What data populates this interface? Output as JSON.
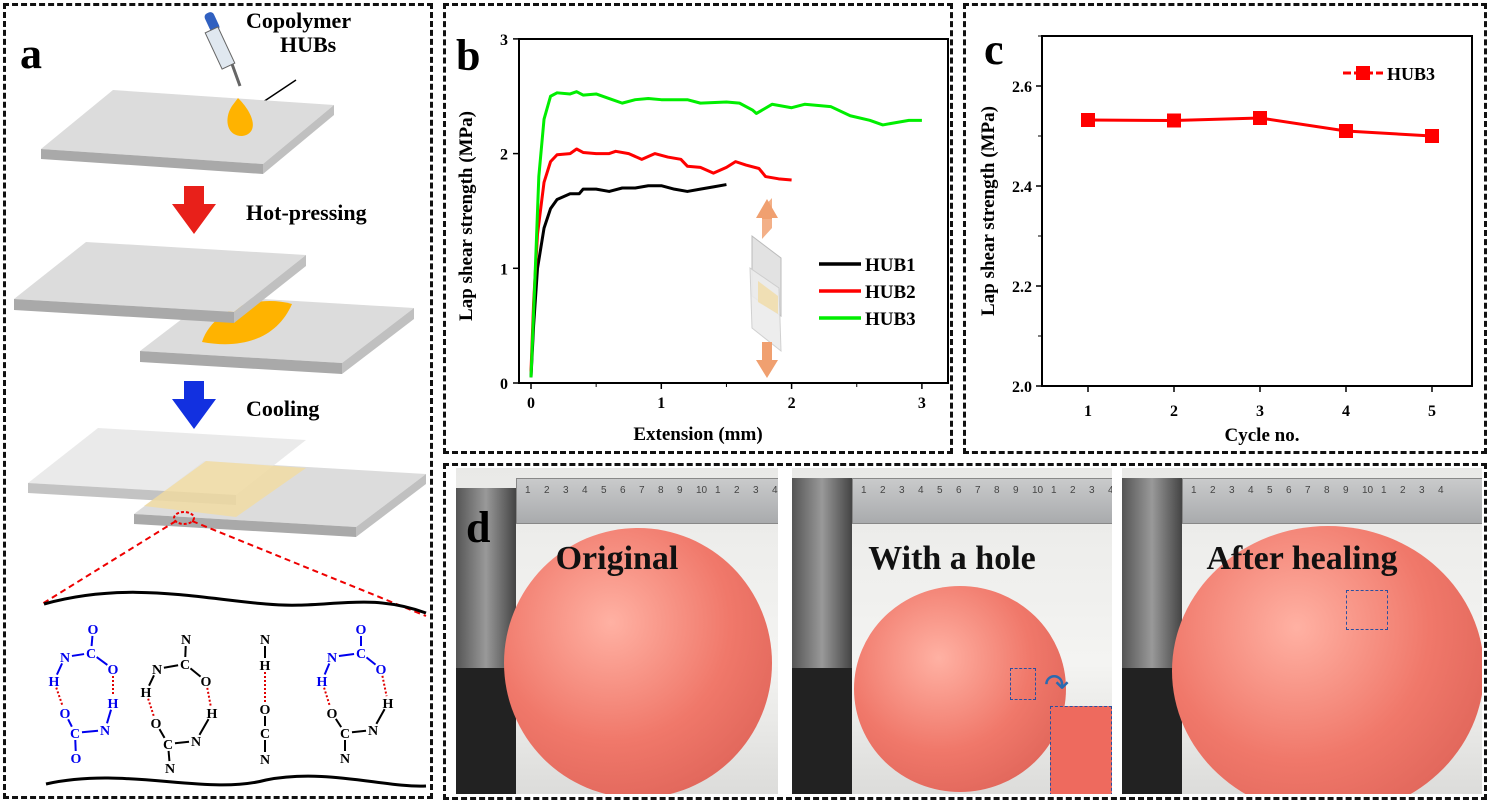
{
  "panel_a": {
    "label": "a",
    "copolymer_label_line1": "Copolymer",
    "copolymer_label_line2": "HUBs",
    "step1": "Hot-pressing",
    "step2": "Cooling",
    "colors": {
      "adhesive": "#ffb300",
      "arrow_hot": "#e8201a",
      "arrow_cool": "#1230e0",
      "hbond": "#e00000",
      "urethane": "#0000ee"
    },
    "motifs": [
      {
        "atoms": [
          "O",
          "C",
          "N",
          "O",
          "H",
          "H",
          "O",
          "N",
          "C",
          "O"
        ],
        "color": "#0000ee"
      },
      {
        "atoms": [
          "N",
          "C",
          "N",
          "O",
          "H",
          "H",
          "O",
          "N",
          "C",
          "N"
        ],
        "color": "#000000"
      },
      {
        "atoms": [
          "N",
          "H",
          "O",
          "C",
          "N"
        ],
        "color": "#000000"
      },
      {
        "atoms": [
          "O",
          "C",
          "N",
          "O",
          "H",
          "H",
          "O",
          "N",
          "C",
          "N"
        ],
        "color": "#0000ee"
      }
    ]
  },
  "chart_data": [
    {
      "panel_label": "b",
      "type": "line",
      "title": "",
      "xlabel": "Extension (mm)",
      "ylabel": "Lap shear strength (MPa)",
      "xlim": [
        -0.2,
        3.1
      ],
      "ylim": [
        0,
        3
      ],
      "xticks": [
        "0",
        "1",
        "2",
        "3"
      ],
      "yticks": [
        "0",
        "1",
        "2",
        "3"
      ],
      "legend_position": "right",
      "series": [
        {
          "name": "HUB1",
          "color": "#000000",
          "points": [
            [
              0,
              0.05
            ],
            [
              0.02,
              0.5
            ],
            [
              0.05,
              1.0
            ],
            [
              0.1,
              1.35
            ],
            [
              0.15,
              1.52
            ],
            [
              0.2,
              1.6
            ],
            [
              0.3,
              1.65
            ],
            [
              0.37,
              1.65
            ],
            [
              0.4,
              1.69
            ],
            [
              0.5,
              1.69
            ],
            [
              0.6,
              1.67
            ],
            [
              0.7,
              1.7
            ],
            [
              0.8,
              1.7
            ],
            [
              0.9,
              1.72
            ],
            [
              1.0,
              1.72
            ],
            [
              1.1,
              1.69
            ],
            [
              1.2,
              1.67
            ],
            [
              1.3,
              1.69
            ],
            [
              1.4,
              1.71
            ],
            [
              1.5,
              1.73
            ]
          ]
        },
        {
          "name": "HUB2",
          "color": "#ff0000",
          "points": [
            [
              0,
              0.1
            ],
            [
              0.02,
              0.7
            ],
            [
              0.05,
              1.3
            ],
            [
              0.1,
              1.75
            ],
            [
              0.15,
              1.93
            ],
            [
              0.2,
              1.99
            ],
            [
              0.3,
              2.0
            ],
            [
              0.35,
              2.04
            ],
            [
              0.4,
              2.01
            ],
            [
              0.5,
              2.0
            ],
            [
              0.6,
              2.0
            ],
            [
              0.65,
              2.02
            ],
            [
              0.75,
              2.0
            ],
            [
              0.85,
              1.95
            ],
            [
              0.95,
              2.0
            ],
            [
              1.05,
              1.97
            ],
            [
              1.15,
              1.95
            ],
            [
              1.2,
              1.89
            ],
            [
              1.3,
              1.88
            ],
            [
              1.4,
              1.83
            ],
            [
              1.5,
              1.88
            ],
            [
              1.57,
              1.93
            ],
            [
              1.65,
              1.9
            ],
            [
              1.75,
              1.87
            ],
            [
              1.8,
              1.8
            ],
            [
              1.9,
              1.78
            ],
            [
              2.0,
              1.77
            ]
          ]
        },
        {
          "name": "HUB3",
          "color": "#00ee00",
          "points": [
            [
              0,
              0.05
            ],
            [
              0.03,
              0.9
            ],
            [
              0.06,
              1.8
            ],
            [
              0.1,
              2.3
            ],
            [
              0.15,
              2.5
            ],
            [
              0.2,
              2.53
            ],
            [
              0.3,
              2.52
            ],
            [
              0.35,
              2.54
            ],
            [
              0.4,
              2.51
            ],
            [
              0.5,
              2.52
            ],
            [
              0.6,
              2.48
            ],
            [
              0.7,
              2.44
            ],
            [
              0.8,
              2.47
            ],
            [
              0.9,
              2.48
            ],
            [
              1.0,
              2.47
            ],
            [
              1.2,
              2.47
            ],
            [
              1.3,
              2.44
            ],
            [
              1.5,
              2.45
            ],
            [
              1.6,
              2.44
            ],
            [
              1.7,
              2.38
            ],
            [
              1.73,
              2.35
            ],
            [
              1.85,
              2.43
            ],
            [
              2.0,
              2.4
            ],
            [
              2.1,
              2.43
            ],
            [
              2.3,
              2.41
            ],
            [
              2.45,
              2.33
            ],
            [
              2.6,
              2.29
            ],
            [
              2.7,
              2.25
            ],
            [
              2.8,
              2.27
            ],
            [
              2.9,
              2.29
            ],
            [
              3.0,
              2.29
            ]
          ]
        }
      ]
    },
    {
      "panel_label": "c",
      "type": "line",
      "title": "",
      "xlabel": "Cycle no.",
      "ylabel": "Lap shear strength (MPa)",
      "xlim": [
        0.5,
        5.5
      ],
      "ylim": [
        2.0,
        2.7
      ],
      "xticks": [
        "1",
        "2",
        "3",
        "4",
        "5"
      ],
      "yticks": [
        "2.0",
        "2.2",
        "2.4",
        "2.6"
      ],
      "legend_position": "top-right",
      "series": [
        {
          "name": "HUB3",
          "color": "#ff0000",
          "x": [
            1,
            2,
            3,
            4,
            5
          ],
          "values": [
            2.532,
            2.531,
            2.536,
            2.51,
            2.5
          ]
        }
      ]
    }
  ],
  "panel_d": {
    "label": "d",
    "photos": [
      {
        "caption": "Original"
      },
      {
        "caption": "With a hole"
      },
      {
        "caption": "After healing"
      }
    ],
    "ruler_numbers": [
      "1",
      "2",
      "3",
      "4",
      "5",
      "6",
      "7",
      "8",
      "9",
      "10",
      "1",
      "2",
      "3",
      "4"
    ]
  }
}
